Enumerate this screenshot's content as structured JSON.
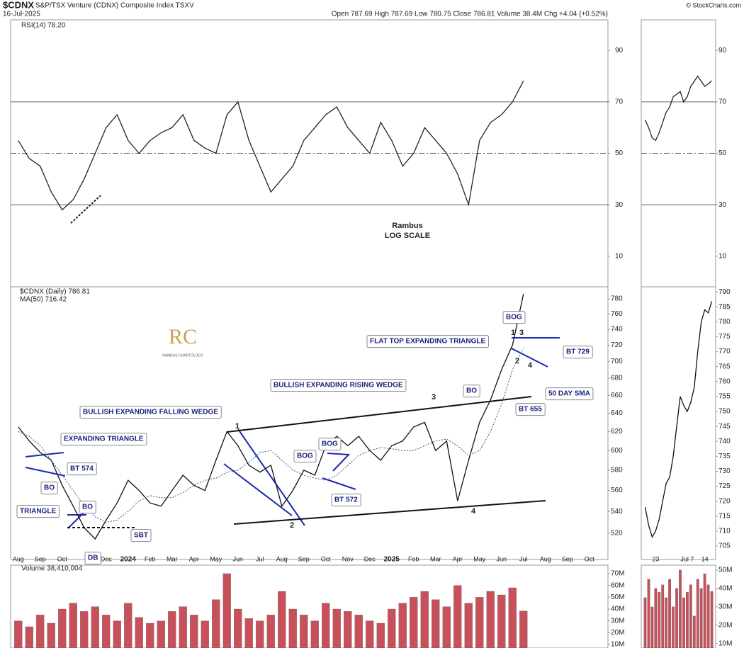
{
  "header": {
    "symbol": "$CDNX",
    "name": "S&P/TSX Venture (CDNX) Composite Index TSXV",
    "date": "16-Jul-2025",
    "quote": "Open 787.69 High 787.69 Low 780.75 Close 786.81 Volume 38.4M Chg +4.04 (+0.52%)",
    "credit": "© StockCharts.com",
    "logo": "RC",
    "logo_caption": "RAMBUS CHARTOLOGY"
  },
  "chart_data": [
    {
      "type": "line",
      "series": [
        {
          "name": "RSI(14) 78.20",
          "color": "#222222",
          "values": [
            55,
            48,
            45,
            35,
            28,
            32,
            40,
            50,
            60,
            65,
            55,
            50,
            55,
            58,
            60,
            65,
            55,
            52,
            50,
            65,
            70,
            55,
            45,
            35,
            40,
            45,
            55,
            60,
            65,
            68,
            60,
            55,
            50,
            62,
            55,
            45,
            50,
            60,
            55,
            50,
            42,
            30,
            55,
            62,
            65,
            70,
            78.2
          ]
        }
      ],
      "ylim": [
        -1.9,
        101.9
      ],
      "yticks": [
        10,
        30,
        50,
        70,
        90
      ],
      "reference_lines": [
        30,
        50,
        70
      ]
    },
    {
      "type": "line",
      "series": [
        {
          "color": "#222222",
          "values": [
            63,
            60,
            56,
            55,
            58,
            62,
            66,
            68,
            72,
            73,
            74,
            70,
            72,
            76,
            78,
            80,
            78,
            76,
            77,
            78.2
          ]
        }
      ],
      "ylim": [
        -1.9,
        101.9
      ],
      "yticks": [
        10,
        30,
        50,
        70,
        90
      ],
      "reference_lines": [
        30,
        50,
        70
      ]
    },
    {
      "type": "line",
      "log_scale": true,
      "categories": [
        "Aug",
        null,
        "Sep",
        null,
        "Oct",
        null,
        null,
        null,
        "Dec",
        null,
        "2024",
        null,
        "Feb",
        null,
        "Mar",
        null,
        "Apr",
        null,
        "May",
        null,
        "Jun",
        null,
        "Jul",
        null,
        "Aug",
        null,
        "Sep",
        null,
        "Oct",
        null,
        "Nov",
        null,
        "Dec",
        null,
        "2025",
        null,
        "Feb",
        null,
        "Mar",
        null,
        "Apr",
        null,
        "May",
        null,
        "Jun",
        null,
        "Jul",
        null,
        "Aug",
        null,
        "Sep",
        null,
        "Oct",
        null
      ],
      "series": [
        {
          "name": "$CDNX (Daily) 786.81",
          "color": "#111111",
          "values": [
            625,
            610,
            598,
            590,
            565,
            545,
            525,
            515,
            532,
            548,
            570,
            560,
            548,
            545,
            560,
            575,
            565,
            560,
            590,
            620,
            605,
            585,
            578,
            585,
            545,
            560,
            580,
            575,
            605,
            615,
            605,
            615,
            600,
            590,
            605,
            610,
            625,
            630,
            600,
            610,
            550,
            590,
            630,
            655,
            690,
            720,
            786.81,
            null,
            null,
            null,
            null,
            null,
            null,
            null
          ]
        },
        {
          "name": "MA(50) 716.42",
          "color": "#3a4f8a",
          "values": [
            620,
            615,
            605,
            590,
            575,
            560,
            545,
            535,
            530,
            532,
            540,
            550,
            555,
            553,
            553,
            558,
            565,
            570,
            572,
            578,
            580,
            588,
            598,
            600,
            590,
            580,
            575,
            572,
            570,
            575,
            585,
            595,
            600,
            603,
            602,
            600,
            600,
            605,
            610,
            612,
            605,
            595,
            600,
            620,
            650,
            690,
            716.42,
            null,
            null,
            null,
            null,
            null,
            null,
            null
          ]
        }
      ],
      "ylim": [
        497,
        796.4
      ],
      "yticks": [
        520,
        540,
        560,
        580,
        600,
        620,
        640,
        660,
        680,
        700,
        720,
        740,
        760,
        780
      ],
      "annotations": [
        "BULLISH EXPANDING FALLING WEDGE",
        "EXPANDING TRIANGLE",
        "BT 574",
        "BO",
        "TRIANGLE",
        "BO",
        "SBT",
        "DB",
        "BOG",
        "BOG",
        "BT 572",
        "BULLISH EXPANDING RISING WEDGE",
        "3",
        "2",
        "4",
        "BO",
        "BT 655",
        "50 DAY SMA",
        "FLAT TOP EXPANDING TRIANGLE",
        "BOG",
        "1",
        "3",
        "2",
        "4",
        "BT 729",
        "Rambus",
        "LOG SCALE",
        "1"
      ]
    },
    {
      "type": "line",
      "categories": [
        null,
        null,
        null,
        "23",
        null,
        null,
        null,
        null,
        null,
        null,
        null,
        null,
        "Jul 7",
        null,
        null,
        null,
        null,
        "14",
        null,
        null
      ],
      "series": [
        {
          "color": "#111111",
          "values": [
            718,
            712,
            708,
            710,
            714,
            720,
            726,
            728,
            735,
            745,
            755,
            752,
            750,
            753,
            758,
            770,
            780,
            784,
            783,
            786.81
          ]
        }
      ],
      "ylim": [
        700.5,
        791.7
      ],
      "yticks": [
        705,
        710,
        715,
        720,
        725,
        730,
        735,
        740,
        745,
        750,
        755,
        760,
        765,
        770,
        775,
        780,
        785,
        790
      ]
    },
    {
      "type": "bar",
      "series": [
        {
          "name": "Volume 38,410,004",
          "color": "#c8505a",
          "values": [
            30,
            25,
            35,
            28,
            40,
            45,
            38,
            42,
            35,
            30,
            45,
            33,
            28,
            30,
            38,
            42,
            35,
            30,
            48,
            70,
            40,
            32,
            30,
            35,
            55,
            40,
            35,
            30,
            45,
            40,
            38,
            35,
            30,
            28,
            40,
            45,
            50,
            55,
            48,
            42,
            60,
            45,
            50,
            55,
            52,
            58,
            38.41
          ]
        }
      ],
      "ylim": [
        7.0,
        77.2
      ],
      "yticks": [
        {
          "value": 10,
          "label": "10M"
        },
        {
          "value": 20,
          "label": "20M"
        },
        {
          "value": 30,
          "label": "30M"
        },
        {
          "value": 40,
          "label": "40M"
        },
        {
          "value": 50,
          "label": "50M"
        },
        {
          "value": 60,
          "label": "60M"
        },
        {
          "value": 70,
          "label": "70M"
        }
      ]
    },
    {
      "type": "bar",
      "series": [
        {
          "color": "#c8505a",
          "values": [
            35,
            45,
            30,
            40,
            38,
            42,
            35,
            45,
            30,
            40,
            50,
            35,
            38,
            42,
            25,
            45,
            40,
            48,
            42,
            38.41
          ]
        }
      ],
      "ylim": [
        7.6,
        52.7
      ],
      "yticks": [
        {
          "value": 10,
          "label": "10M"
        },
        {
          "value": 20,
          "label": "20M"
        },
        {
          "value": 30,
          "label": "30M"
        },
        {
          "value": 40,
          "label": "40M"
        },
        {
          "value": 50,
          "label": "50M"
        }
      ]
    }
  ]
}
